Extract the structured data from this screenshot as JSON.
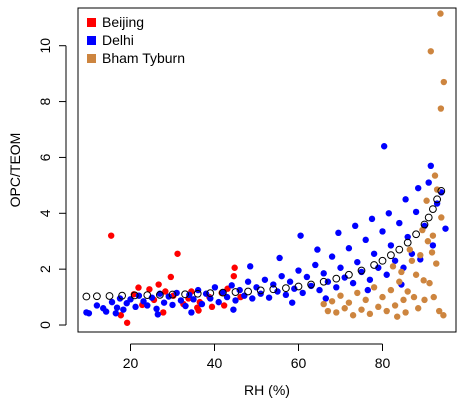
{
  "chart_data": {
    "type": "scatter",
    "title": "",
    "xlabel": "RH (%)",
    "ylabel": "OPC/TEOM",
    "xlim": [
      7.5,
      97.5
    ],
    "ylim": [
      -0.25,
      11.35
    ],
    "x_ticks": [
      20,
      40,
      60,
      80
    ],
    "y_ticks": [
      0,
      2,
      4,
      6,
      8,
      10
    ],
    "grid": false,
    "legend_position": "top-left",
    "series": [
      {
        "name": "Beijing",
        "color": "#ff0000",
        "points": [
          [
            15.4,
            3.2
          ],
          [
            31.2,
            2.55
          ],
          [
            44.8,
            2.05
          ],
          [
            19.2,
            0.08
          ],
          [
            29.6,
            1.72
          ],
          [
            26.7,
            1.45
          ],
          [
            21.9,
            1.34
          ],
          [
            33.8,
            0.95
          ],
          [
            36.2,
            0.52
          ],
          [
            35.9,
            0.62
          ],
          [
            38.8,
            1.0
          ],
          [
            41.7,
            1.15
          ],
          [
            24.5,
            1.28
          ],
          [
            28.3,
            1.2
          ],
          [
            22.8,
            0.72
          ],
          [
            27.8,
            0.45
          ],
          [
            39.4,
            0.65
          ],
          [
            36.5,
            0.82
          ],
          [
            43.1,
            1.3
          ],
          [
            44.6,
            1.75
          ],
          [
            30.2,
            1.05
          ],
          [
            17.7,
            0.35
          ],
          [
            20.8,
            1.1
          ],
          [
            25.6,
            0.9
          ],
          [
            32.6,
            0.75
          ],
          [
            34.5,
            1.2
          ],
          [
            42.3,
            0.7
          ],
          [
            46.2,
            1.0
          ]
        ]
      },
      {
        "name": "Delhi",
        "color": "#0000ff",
        "points": [
          [
            9.5,
            0.45
          ],
          [
            10.1,
            0.42
          ],
          [
            12.0,
            0.7
          ],
          [
            13.5,
            0.6
          ],
          [
            14.2,
            0.48
          ],
          [
            15.6,
            0.82
          ],
          [
            16.8,
            0.62
          ],
          [
            17.5,
            0.95
          ],
          [
            18.3,
            0.55
          ],
          [
            19.1,
            0.78
          ],
          [
            20.0,
            0.92
          ],
          [
            21.2,
            0.65
          ],
          [
            22.0,
            1.05
          ],
          [
            23.1,
            0.85
          ],
          [
            24.0,
            0.7
          ],
          [
            25.1,
            0.98
          ],
          [
            26.2,
            0.58
          ],
          [
            27.0,
            1.12
          ],
          [
            28.0,
            0.8
          ],
          [
            29.1,
            1.02
          ],
          [
            30.0,
            0.72
          ],
          [
            31.0,
            1.15
          ],
          [
            32.0,
            0.88
          ],
          [
            33.1,
            0.68
          ],
          [
            34.0,
            1.08
          ],
          [
            35.0,
            0.92
          ],
          [
            36.1,
            1.25
          ],
          [
            37.0,
            0.75
          ],
          [
            38.0,
            1.12
          ],
          [
            39.0,
            0.95
          ],
          [
            40.1,
            1.35
          ],
          [
            41.0,
            0.82
          ],
          [
            42.0,
            1.18
          ],
          [
            43.0,
            1.0
          ],
          [
            44.1,
            1.42
          ],
          [
            45.0,
            0.88
          ],
          [
            46.0,
            1.25
          ],
          [
            47.1,
            1.05
          ],
          [
            48.0,
            1.55
          ],
          [
            49.0,
            0.95
          ],
          [
            50.0,
            1.35
          ],
          [
            51.0,
            1.12
          ],
          [
            52.0,
            1.62
          ],
          [
            53.0,
            0.98
          ],
          [
            54.0,
            1.45
          ],
          [
            55.0,
            1.2
          ],
          [
            56.0,
            1.75
          ],
          [
            57.0,
            1.08
          ],
          [
            58.0,
            1.55
          ],
          [
            59.0,
            1.3
          ],
          [
            60.0,
            1.95
          ],
          [
            61.0,
            1.15
          ],
          [
            62.0,
            1.72
          ],
          [
            63.0,
            1.4
          ],
          [
            64.0,
            2.15
          ],
          [
            65.0,
            1.25
          ],
          [
            66.0,
            1.85
          ],
          [
            67.0,
            1.55
          ],
          [
            68.0,
            2.45
          ],
          [
            69.0,
            1.35
          ],
          [
            70.0,
            2.05
          ],
          [
            71.0,
            1.7
          ],
          [
            72.0,
            2.75
          ],
          [
            73.0,
            1.5
          ],
          [
            74.0,
            2.25
          ],
          [
            75.0,
            1.9
          ],
          [
            76.0,
            3.05
          ],
          [
            77.0,
            1.62
          ],
          [
            78.0,
            2.55
          ],
          [
            79.0,
            2.05
          ],
          [
            80.0,
            3.35
          ],
          [
            80.4,
            6.4
          ],
          [
            81.0,
            1.8
          ],
          [
            82.0,
            2.85
          ],
          [
            83.0,
            2.3
          ],
          [
            84.0,
            3.65
          ],
          [
            85.0,
            2.05
          ],
          [
            86.0,
            3.15
          ],
          [
            87.0,
            2.55
          ],
          [
            88.0,
            4.05
          ],
          [
            89.0,
            2.35
          ],
          [
            90.0,
            3.55
          ],
          [
            91.0,
            5.1
          ],
          [
            91.5,
            5.7
          ],
          [
            92.0,
            2.85
          ],
          [
            93.0,
            4.35
          ],
          [
            94.0,
            4.75
          ],
          [
            95.0,
            3.45
          ],
          [
            60.5,
            3.2
          ],
          [
            55.5,
            2.4
          ],
          [
            48.5,
            2.1
          ],
          [
            64.5,
            2.7
          ],
          [
            69.5,
            3.3
          ],
          [
            73.5,
            3.55
          ],
          [
            77.5,
            3.8
          ],
          [
            81.5,
            4.0
          ],
          [
            85.5,
            4.5
          ],
          [
            88.5,
            4.9
          ],
          [
            84.5,
            1.45
          ],
          [
            76.5,
            1.25
          ],
          [
            66.5,
            0.95
          ],
          [
            58.5,
            0.8
          ],
          [
            44.5,
            0.55
          ],
          [
            34.5,
            0.45
          ],
          [
            26.5,
            0.38
          ],
          [
            16.5,
            0.42
          ]
        ]
      },
      {
        "name": "Bham Tyburn",
        "color": "#cd853f",
        "points": [
          [
            93.8,
            11.15
          ],
          [
            93.9,
            7.75
          ],
          [
            94.6,
            8.7
          ],
          [
            91.5,
            9.8
          ],
          [
            92.5,
            5.35
          ],
          [
            93.0,
            4.85
          ],
          [
            94.0,
            3.85
          ],
          [
            92.0,
            3.2
          ],
          [
            90.5,
            4.45
          ],
          [
            89.0,
            2.5
          ],
          [
            88.0,
            1.8
          ],
          [
            87.0,
            2.3
          ],
          [
            86.0,
            1.2
          ],
          [
            85.0,
            0.9
          ],
          [
            84.0,
            1.55
          ],
          [
            83.0,
            0.7
          ],
          [
            82.0,
            1.25
          ],
          [
            81.0,
            0.5
          ],
          [
            80.0,
            1.0
          ],
          [
            79.0,
            0.65
          ],
          [
            78.0,
            1.35
          ],
          [
            77.0,
            0.4
          ],
          [
            76.0,
            0.9
          ],
          [
            75.0,
            0.55
          ],
          [
            74.0,
            1.15
          ],
          [
            73.0,
            0.35
          ],
          [
            72.0,
            0.8
          ],
          [
            71.0,
            0.6
          ],
          [
            70.0,
            1.05
          ],
          [
            69.0,
            0.45
          ],
          [
            68.0,
            0.85
          ],
          [
            67.0,
            0.5
          ],
          [
            66.0,
            0.75
          ],
          [
            92.8,
            2.2
          ],
          [
            91.2,
            1.5
          ],
          [
            90.0,
            0.9
          ],
          [
            89.5,
            3.4
          ],
          [
            88.5,
            0.6
          ],
          [
            87.5,
            1.0
          ],
          [
            86.5,
            2.7
          ],
          [
            85.5,
            0.45
          ],
          [
            84.5,
            1.9
          ],
          [
            83.5,
            0.3
          ],
          [
            82.5,
            2.1
          ],
          [
            93.5,
            0.5
          ],
          [
            94.5,
            0.35
          ],
          [
            92.2,
            1.0
          ],
          [
            91.8,
            2.6
          ],
          [
            90.8,
            3.0
          ],
          [
            89.8,
            1.6
          ]
        ]
      },
      {
        "name": "",
        "color": "#000000",
        "marker": "open-circle",
        "points": [
          [
            9.5,
            1.02
          ],
          [
            12,
            1.03
          ],
          [
            15,
            1.04
          ],
          [
            18,
            1.05
          ],
          [
            21,
            1.06
          ],
          [
            24,
            1.07
          ],
          [
            27,
            1.08
          ],
          [
            30,
            1.09
          ],
          [
            33,
            1.1
          ],
          [
            36,
            1.12
          ],
          [
            39,
            1.14
          ],
          [
            42,
            1.16
          ],
          [
            45,
            1.18
          ],
          [
            48,
            1.2
          ],
          [
            51,
            1.24
          ],
          [
            54,
            1.28
          ],
          [
            57,
            1.32
          ],
          [
            60,
            1.38
          ],
          [
            63,
            1.45
          ],
          [
            66,
            1.55
          ],
          [
            69,
            1.66
          ],
          [
            72,
            1.8
          ],
          [
            75,
            1.95
          ],
          [
            78,
            2.15
          ],
          [
            80,
            2.3
          ],
          [
            82,
            2.5
          ],
          [
            84,
            2.7
          ],
          [
            86,
            2.95
          ],
          [
            88,
            3.25
          ],
          [
            90,
            3.6
          ],
          [
            91,
            3.85
          ],
          [
            92,
            4.15
          ],
          [
            93,
            4.5
          ],
          [
            94,
            4.8
          ]
        ]
      }
    ]
  }
}
